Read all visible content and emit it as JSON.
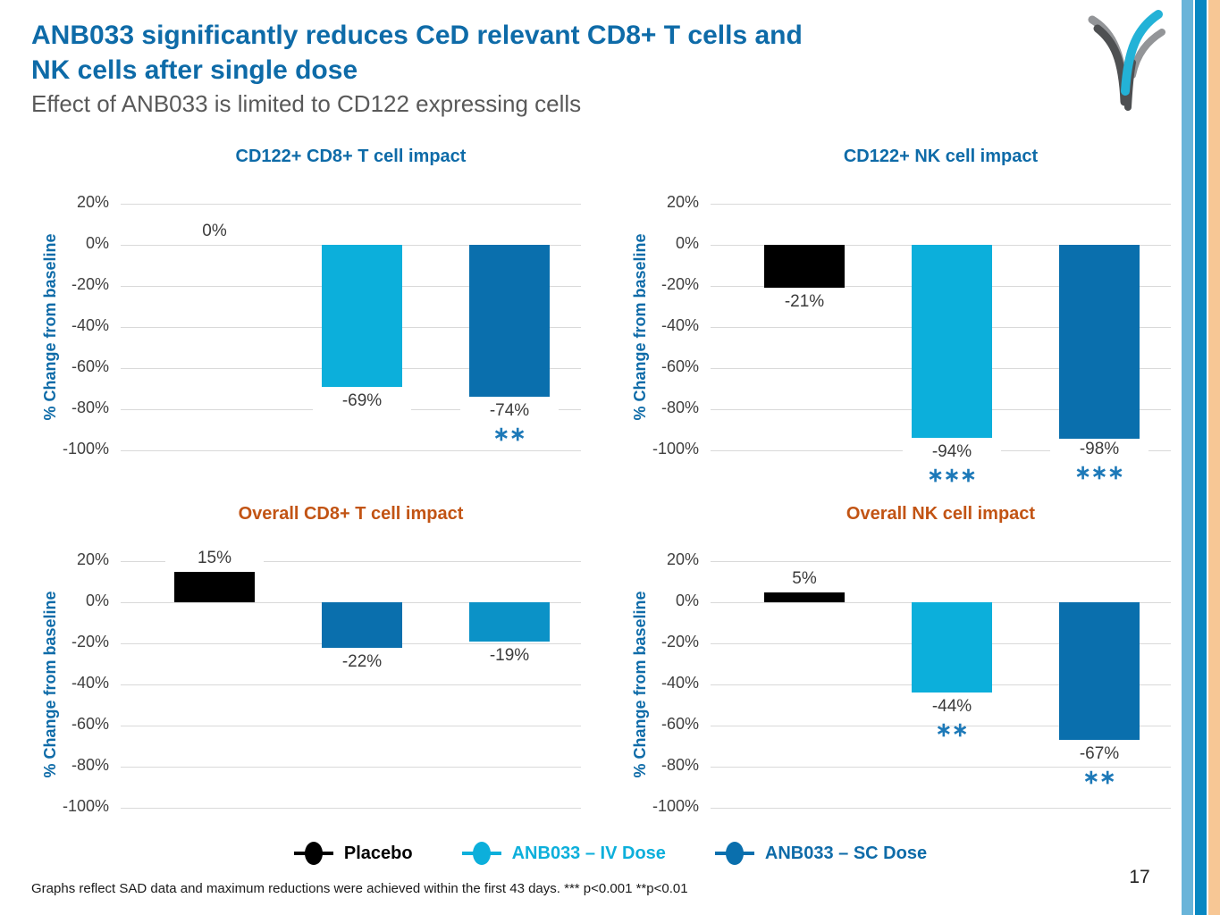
{
  "slide": {
    "title_line1": "ANB033 significantly reduces CeD relevant CD8+ T cells and",
    "title_line2": "NK cells after single dose",
    "subtitle": "Effect of ANB033 is limited to CD122 expressing cells",
    "footnote": "Graphs reflect SAD data and maximum reductions were achieved within the first 43 days. *** p<0.001 **p<0.01",
    "page_number": "17"
  },
  "colors": {
    "accent_blue": "#0E6BA8",
    "accent_orange": "#C25414",
    "bar_black": "#000000",
    "bar_cyan": "#0CAFDB",
    "bar_dark_blue": "#0A6FAD",
    "bar_medium_blue": "#0B92C7",
    "stars_blue": "#1D79B8",
    "gridline_gray": "#D9D9D9",
    "tick_text": "#3F3F3F",
    "subtitle_gray": "#595959",
    "stripe_light_blue": "#69B4D9",
    "stripe_dark_blue": "#0887C2",
    "stripe_peach": "#F7C795",
    "logo_cyan": "#23B2D7",
    "logo_gray": "#939598",
    "logo_dark_gray": "#4E5052"
  },
  "legend": {
    "items": [
      {
        "label": "Placebo",
        "marker_color": "#000000",
        "text_color": "#000000"
      },
      {
        "label": "ANB033 – IV Dose",
        "marker_color": "#0CAFDB",
        "text_color": "#0CAFDB"
      },
      {
        "label": "ANB033 – SC Dose",
        "marker_color": "#0A6FAD",
        "text_color": "#0E6BA8"
      }
    ]
  },
  "chart_data": [
    {
      "type": "bar",
      "title": "CD122+ CD8+ T cell impact",
      "title_color": "#0E6BA8",
      "ylabel": "% Change from baseline",
      "ylim": [
        -100,
        20
      ],
      "yticks": [
        "20%",
        "0%",
        "-20%",
        "-40%",
        "-60%",
        "-80%",
        "-100%"
      ],
      "grid": true,
      "legend_position": "bottom-shared",
      "categories": [
        "Placebo",
        "ANB033 – IV Dose",
        "ANB033 – SC Dose"
      ],
      "values": [
        0,
        -69,
        -74
      ],
      "labels": [
        "0%",
        "-69%",
        "-74%"
      ],
      "stars": [
        "",
        "",
        "**"
      ],
      "bar_colors": [
        "#000000",
        "#0CAFDB",
        "#0A6FAD"
      ]
    },
    {
      "type": "bar",
      "title": "CD122+ NK cell impact",
      "title_color": "#0E6BA8",
      "ylabel": "% Change from baseline",
      "ylim": [
        -100,
        20
      ],
      "yticks": [
        "20%",
        "0%",
        "-20%",
        "-40%",
        "-60%",
        "-80%",
        "-100%"
      ],
      "grid": true,
      "legend_position": "bottom-shared",
      "categories": [
        "Placebo",
        "ANB033 – IV Dose",
        "ANB033 – SC Dose"
      ],
      "values": [
        -21,
        -94,
        -98
      ],
      "labels": [
        "-21%",
        "-94%",
        "-98%"
      ],
      "stars": [
        "",
        "***",
        "***"
      ],
      "bar_colors": [
        "#000000",
        "#0CAFDB",
        "#0A6FAD"
      ]
    },
    {
      "type": "bar",
      "title": "Overall CD8+ T cell impact",
      "title_color": "#C25414",
      "ylabel": "% Change from baseline",
      "ylim": [
        -100,
        20
      ],
      "yticks": [
        "20%",
        "0%",
        "-20%",
        "-40%",
        "-60%",
        "-80%",
        "-100%"
      ],
      "grid": true,
      "legend_position": "bottom-shared",
      "categories": [
        "Placebo",
        "ANB033 – IV Dose",
        "ANB033 – SC Dose"
      ],
      "values": [
        15,
        -22,
        -19
      ],
      "labels": [
        "15%",
        "-22%",
        "-19%"
      ],
      "stars": [
        "",
        "",
        ""
      ],
      "bar_colors": [
        "#000000",
        "#0A6FAD",
        "#0B92C7"
      ]
    },
    {
      "type": "bar",
      "title": "Overall NK cell impact",
      "title_color": "#C25414",
      "ylabel": "% Change from baseline",
      "ylim": [
        -100,
        20
      ],
      "yticks": [
        "20%",
        "0%",
        "-20%",
        "-40%",
        "-60%",
        "-80%",
        "-100%"
      ],
      "grid": true,
      "legend_position": "bottom-shared",
      "categories": [
        "Placebo",
        "ANB033 – IV Dose",
        "ANB033 – SC Dose"
      ],
      "values": [
        5,
        -44,
        -67
      ],
      "labels": [
        "5%",
        "-44%",
        "-67%"
      ],
      "stars": [
        "",
        "**",
        "**"
      ],
      "bar_colors": [
        "#000000",
        "#0CAFDB",
        "#0A6FAD"
      ]
    }
  ]
}
